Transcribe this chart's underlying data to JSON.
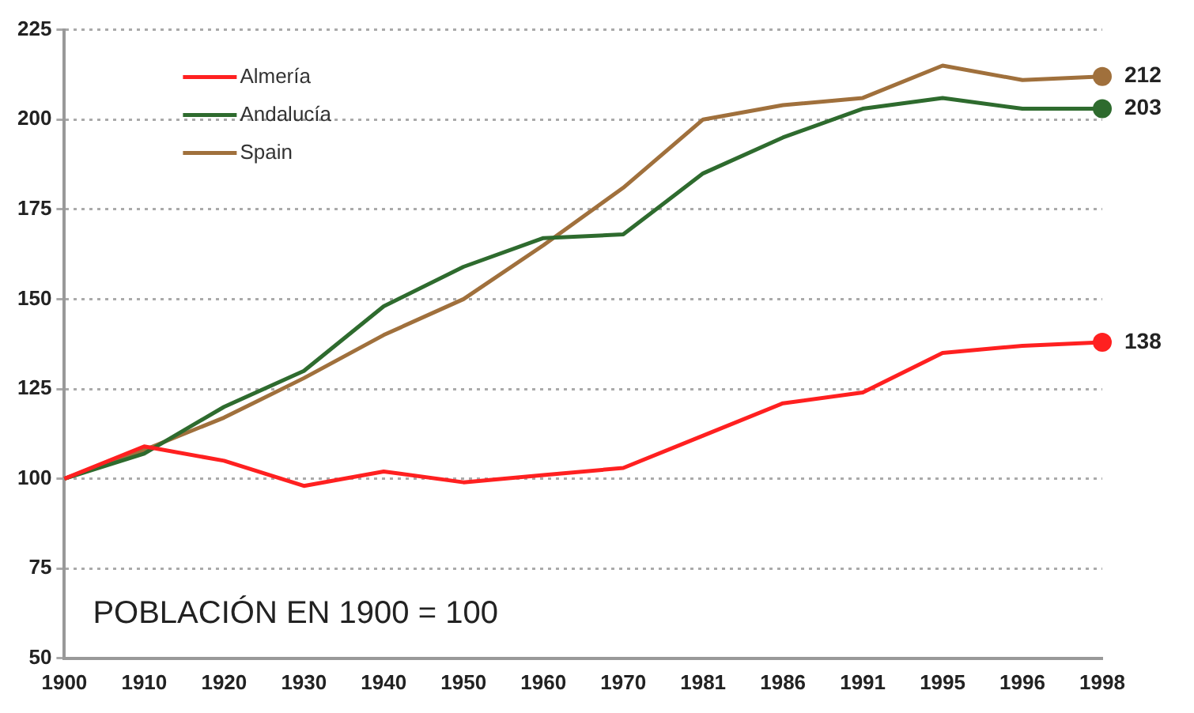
{
  "chart_data": {
    "type": "line",
    "categories": [
      "1900",
      "1910",
      "1920",
      "1930",
      "1940",
      "1950",
      "1960",
      "1970",
      "1981",
      "1986",
      "1991",
      "1995",
      "1996",
      "1998"
    ],
    "series": [
      {
        "name": "Almería",
        "color": "#ff2020",
        "values": [
          100,
          109,
          105,
          98,
          102,
          99,
          101,
          103,
          112,
          121,
          124,
          135,
          137,
          138
        ],
        "value_labels": [
          null,
          null,
          null,
          null,
          null,
          null,
          null,
          null,
          null,
          null,
          null,
          null,
          null,
          "138"
        ]
      },
      {
        "name": "Andalucía",
        "color": "#2e6b2e",
        "values": [
          100,
          107,
          120,
          130,
          148,
          159,
          167,
          168,
          185,
          195,
          203,
          206,
          203,
          203
        ],
        "value_labels": [
          null,
          null,
          null,
          null,
          null,
          null,
          null,
          null,
          null,
          null,
          null,
          null,
          null,
          "203"
        ]
      },
      {
        "name": "Spain",
        "color": "#a0703c",
        "values": [
          100,
          108,
          117,
          128,
          140,
          150,
          165,
          181,
          200,
          204,
          206,
          215,
          211,
          212
        ],
        "value_labels": [
          null,
          null,
          null,
          null,
          null,
          null,
          null,
          null,
          null,
          null,
          null,
          null,
          null,
          "212"
        ]
      }
    ],
    "ylim": [
      50,
      225
    ],
    "yticks": [
      50,
      75,
      100,
      125,
      150,
      175,
      200,
      225
    ],
    "grid": "y",
    "legend": "top left",
    "annotations": [
      "POBLACIÓN EN 1900 = 100"
    ]
  }
}
